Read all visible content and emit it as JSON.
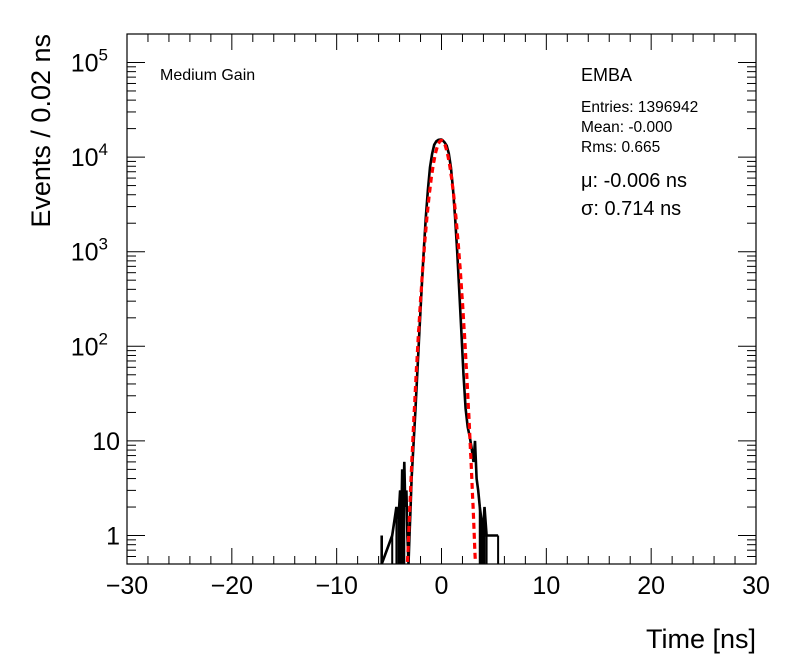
{
  "chart_data": {
    "type": "histogram",
    "title": "",
    "xlabel": "Time [ns]",
    "ylabel": "Events / 0.02 ns",
    "xlim": [
      -30,
      30
    ],
    "ylim": [
      0.5,
      200000
    ],
    "yscale": "log",
    "x_ticks": [
      -30,
      -20,
      -10,
      0,
      10,
      20,
      30
    ],
    "x_tick_labels": [
      "−30",
      "−20",
      "−10",
      "0",
      "10",
      "20",
      "30"
    ],
    "y_ticks": [
      1,
      10,
      100,
      1000,
      10000,
      100000
    ],
    "y_tick_labels": [
      {
        "base": "1",
        "exp": ""
      },
      {
        "base": "10",
        "exp": ""
      },
      {
        "base": "10",
        "exp": "2"
      },
      {
        "base": "10",
        "exp": "3"
      },
      {
        "base": "10",
        "exp": "4"
      },
      {
        "base": "10",
        "exp": "5"
      }
    ],
    "grid": false,
    "annotations": {
      "gain": "Medium Gain",
      "region": "EMBA",
      "entries": "Entries: 1396942",
      "mean": "Mean: -0.000",
      "rms": "Rms: 0.665",
      "mu": "μ: -0.006 ns",
      "sigma": "σ: 0.714 ns"
    },
    "histogram": {
      "name": "",
      "color": "#000000",
      "x": [
        -5.7,
        -5.7,
        -4.7,
        -4.3,
        -4.1,
        -3.95,
        -3.85,
        -3.75,
        -3.65,
        -3.55,
        -3.45,
        -3.35,
        -3.25,
        -3.15,
        -3.05,
        -2.95,
        -2.85,
        -2.7,
        -2.5,
        -2.3,
        -2.1,
        -1.9,
        -1.7,
        -1.5,
        -1.3,
        -1.1,
        -0.9,
        -0.7,
        -0.5,
        -0.3,
        -0.1,
        0.0,
        0.1,
        0.3,
        0.5,
        0.7,
        0.9,
        1.1,
        1.3,
        1.5,
        1.7,
        1.9,
        2.1,
        2.3,
        2.5,
        2.7,
        2.9,
        3.05,
        3.2,
        3.35,
        3.5,
        3.65,
        3.8,
        3.95,
        4.1,
        4.3,
        5.4
      ],
      "y": [
        1,
        0,
        1,
        2,
        1.5,
        3,
        1,
        5,
        2,
        6,
        2,
        3,
        1,
        0,
        1,
        2,
        4,
        8,
        20,
        55,
        150,
        400,
        1000,
        2300,
        4500,
        7800,
        10800,
        13500,
        14700,
        15200,
        15300,
        15300,
        15100,
        14300,
        13200,
        10900,
        7800,
        4600,
        2300,
        1000,
        380,
        140,
        50,
        22,
        14,
        11,
        8,
        6,
        10,
        4,
        3,
        2,
        1.5,
        1,
        2,
        1,
        1
      ]
    },
    "fit": {
      "name": "",
      "type": "gaussian",
      "color": "#ff0000",
      "mu": -0.006,
      "sigma": 0.714,
      "amplitude": 15000,
      "range": [
        -3.4,
        3.4
      ]
    }
  }
}
